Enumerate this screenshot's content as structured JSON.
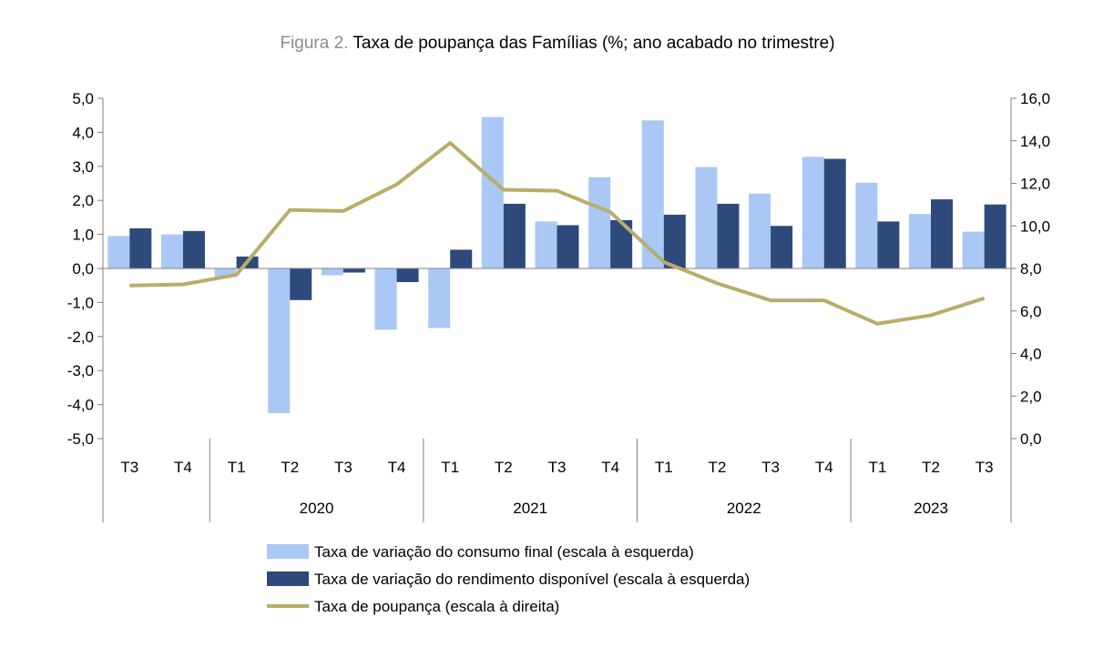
{
  "title": {
    "prefix": "Figura 2.",
    "main": "Taxa de poupança das Famílias (%; ano acabado no trimestre)"
  },
  "colors": {
    "consumo": "#a9c8f5",
    "rendimento": "#2e4a7b",
    "poupanca": "#b8ad6a",
    "axis": "#7f7f7f"
  },
  "chart_data": {
    "type": "bar",
    "categories": [
      "T3",
      "T4",
      "T1",
      "T2",
      "T3",
      "T4",
      "T1",
      "T2",
      "T3",
      "T4",
      "T1",
      "T2",
      "T3",
      "T4",
      "T1",
      "T2",
      "T3"
    ],
    "year_groups": [
      {
        "label": "",
        "start": 0,
        "end": 1
      },
      {
        "label": "2020",
        "start": 2,
        "end": 5
      },
      {
        "label": "2021",
        "start": 6,
        "end": 9
      },
      {
        "label": "2022",
        "start": 10,
        "end": 13
      },
      {
        "label": "2023",
        "start": 14,
        "end": 16
      }
    ],
    "series": [
      {
        "name": "Taxa de variação do consumo final (escala à esquerda)",
        "type": "bar",
        "axis": "left",
        "values": [
          0.95,
          1.0,
          -0.25,
          -4.25,
          -0.2,
          -1.8,
          -1.75,
          4.45,
          1.38,
          2.68,
          4.35,
          2.98,
          2.2,
          3.28,
          2.52,
          1.6,
          1.08
        ]
      },
      {
        "name": "Taxa de variação do rendimento disponível (escala à esquerda)",
        "type": "bar",
        "axis": "left",
        "values": [
          1.18,
          1.1,
          0.35,
          -0.93,
          -0.12,
          -0.4,
          0.55,
          1.9,
          1.27,
          1.42,
          1.58,
          1.9,
          1.25,
          3.22,
          1.38,
          2.03,
          1.88
        ]
      },
      {
        "name": "Taxa de poupança (escala à direita)",
        "type": "line",
        "axis": "right",
        "values": [
          7.2,
          7.25,
          7.7,
          10.75,
          10.7,
          11.95,
          13.9,
          11.7,
          11.65,
          10.65,
          8.3,
          7.3,
          6.5,
          6.5,
          5.4,
          5.8,
          6.6
        ]
      }
    ],
    "y_left": {
      "min": -5,
      "max": 5,
      "step": 1,
      "tick_labels": [
        "-5,0",
        "-4,0",
        "-3,0",
        "-2,0",
        "-1,0",
        "0,0",
        "1,0",
        "2,0",
        "3,0",
        "4,0",
        "5,0"
      ]
    },
    "y_right": {
      "min": 0,
      "max": 16,
      "step": 2,
      "tick_labels": [
        "0,0",
        "2,0",
        "4,0",
        "6,0",
        "8,0",
        "10,0",
        "12,0",
        "14,0",
        "16,0"
      ]
    },
    "grid": false,
    "legend_position": "bottom"
  }
}
